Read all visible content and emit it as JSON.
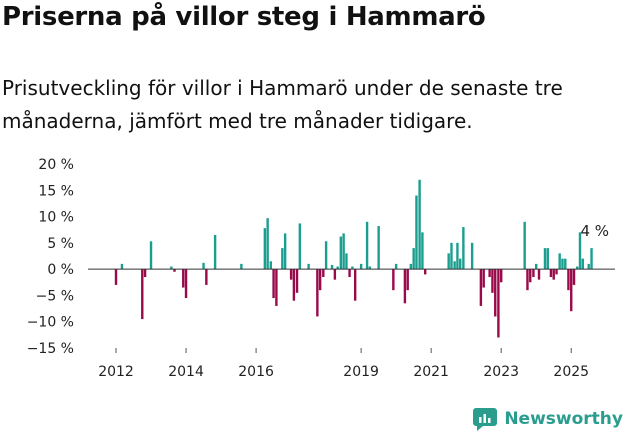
{
  "chart_data": {
    "type": "bar",
    "title": "Priserna på villor steg i Hammarö",
    "subtitle": "Prisutveckling för villor i Hammarö under de senaste tre månaderna, jämfört med tre månader tidigare.",
    "ylim": [
      -15,
      20
    ],
    "yticks": [
      20,
      15,
      10,
      5,
      0,
      -5,
      -10,
      -15
    ],
    "ytick_labels": [
      "20 %",
      "15 %",
      "10 %",
      "5 %",
      "0 %",
      "−5 %",
      "−10 %",
      "−15 %"
    ],
    "xlim": [
      2011.2,
      2026.25
    ],
    "xticks": [
      2012,
      2014,
      2016,
      2019,
      2021,
      2023,
      2025
    ],
    "xtick_labels": [
      "2012",
      "2014",
      "2016",
      "2019",
      "2021",
      "2023",
      "2025"
    ],
    "positive_color": "#1a9e8f",
    "negative_color": "#990a4a",
    "annotation": {
      "text": "4 %",
      "x": 2025.33,
      "y": 4
    },
    "points": [
      {
        "x": 2012.0,
        "y": -3.0
      },
      {
        "x": 2012.17,
        "y": 1.0
      },
      {
        "x": 2012.75,
        "y": -9.5
      },
      {
        "x": 2012.83,
        "y": -1.5
      },
      {
        "x": 2013.0,
        "y": 5.3
      },
      {
        "x": 2013.58,
        "y": 0.5
      },
      {
        "x": 2013.67,
        "y": -0.5
      },
      {
        "x": 2013.92,
        "y": -3.5
      },
      {
        "x": 2014.0,
        "y": -5.5
      },
      {
        "x": 2014.5,
        "y": 1.2
      },
      {
        "x": 2014.58,
        "y": -3.0
      },
      {
        "x": 2014.83,
        "y": 6.5
      },
      {
        "x": 2015.58,
        "y": 1.0
      },
      {
        "x": 2016.25,
        "y": 7.8
      },
      {
        "x": 2016.33,
        "y": 9.7
      },
      {
        "x": 2016.42,
        "y": 1.5
      },
      {
        "x": 2016.5,
        "y": -5.5
      },
      {
        "x": 2016.58,
        "y": -7.0
      },
      {
        "x": 2016.75,
        "y": 4.0
      },
      {
        "x": 2016.83,
        "y": 6.8
      },
      {
        "x": 2017.0,
        "y": -2.0
      },
      {
        "x": 2017.08,
        "y": -6.0
      },
      {
        "x": 2017.17,
        "y": -4.5
      },
      {
        "x": 2017.25,
        "y": 8.7
      },
      {
        "x": 2017.5,
        "y": 1.0
      },
      {
        "x": 2017.75,
        "y": -9.0
      },
      {
        "x": 2017.83,
        "y": -4.0
      },
      {
        "x": 2017.92,
        "y": -1.5
      },
      {
        "x": 2018.0,
        "y": 5.3
      },
      {
        "x": 2018.17,
        "y": 0.8
      },
      {
        "x": 2018.25,
        "y": -2.0
      },
      {
        "x": 2018.33,
        "y": 0.5
      },
      {
        "x": 2018.42,
        "y": 6.2
      },
      {
        "x": 2018.5,
        "y": 6.8
      },
      {
        "x": 2018.58,
        "y": 3.0
      },
      {
        "x": 2018.67,
        "y": -1.5
      },
      {
        "x": 2018.75,
        "y": 0.5
      },
      {
        "x": 2018.83,
        "y": -6.0
      },
      {
        "x": 2019.0,
        "y": 1.0
      },
      {
        "x": 2019.17,
        "y": 9.0
      },
      {
        "x": 2019.25,
        "y": 0.5
      },
      {
        "x": 2019.5,
        "y": 8.2
      },
      {
        "x": 2019.92,
        "y": -4.0
      },
      {
        "x": 2020.0,
        "y": 1.0
      },
      {
        "x": 2020.25,
        "y": -6.5
      },
      {
        "x": 2020.33,
        "y": -4.0
      },
      {
        "x": 2020.42,
        "y": 1.0
      },
      {
        "x": 2020.5,
        "y": 4.0
      },
      {
        "x": 2020.58,
        "y": 14.0
      },
      {
        "x": 2020.67,
        "y": 17.0
      },
      {
        "x": 2020.75,
        "y": 7.0
      },
      {
        "x": 2020.83,
        "y": -1.0
      },
      {
        "x": 2021.5,
        "y": 3.0
      },
      {
        "x": 2021.58,
        "y": 5.0
      },
      {
        "x": 2021.67,
        "y": 1.5
      },
      {
        "x": 2021.75,
        "y": 5.0
      },
      {
        "x": 2021.83,
        "y": 2.0
      },
      {
        "x": 2021.92,
        "y": 8.0
      },
      {
        "x": 2022.17,
        "y": 5.0
      },
      {
        "x": 2022.42,
        "y": -7.0
      },
      {
        "x": 2022.5,
        "y": -3.5
      },
      {
        "x": 2022.67,
        "y": -1.5
      },
      {
        "x": 2022.75,
        "y": -4.5
      },
      {
        "x": 2022.83,
        "y": -9.0
      },
      {
        "x": 2022.92,
        "y": -13.0
      },
      {
        "x": 2023.0,
        "y": -2.5
      },
      {
        "x": 2023.67,
        "y": 9.0
      },
      {
        "x": 2023.75,
        "y": -4.0
      },
      {
        "x": 2023.83,
        "y": -2.5
      },
      {
        "x": 2023.92,
        "y": -1.5
      },
      {
        "x": 2024.0,
        "y": 1.0
      },
      {
        "x": 2024.08,
        "y": -2.0
      },
      {
        "x": 2024.25,
        "y": 4.0
      },
      {
        "x": 2024.33,
        "y": 4.0
      },
      {
        "x": 2024.42,
        "y": -1.5
      },
      {
        "x": 2024.5,
        "y": -2.0
      },
      {
        "x": 2024.58,
        "y": -1.0
      },
      {
        "x": 2024.67,
        "y": 3.0
      },
      {
        "x": 2024.75,
        "y": 2.0
      },
      {
        "x": 2024.83,
        "y": 2.0
      },
      {
        "x": 2024.92,
        "y": -4.0
      },
      {
        "x": 2025.0,
        "y": -8.0
      },
      {
        "x": 2025.08,
        "y": -3.0
      },
      {
        "x": 2025.17,
        "y": 0.5
      },
      {
        "x": 2025.25,
        "y": 7.0
      },
      {
        "x": 2025.33,
        "y": 2.0
      },
      {
        "x": 2025.5,
        "y": 1.0
      },
      {
        "x": 2025.58,
        "y": 4.0
      }
    ]
  },
  "brand": {
    "name": "Newsworthy"
  },
  "colors": {
    "accent": "#2a9d8f"
  }
}
